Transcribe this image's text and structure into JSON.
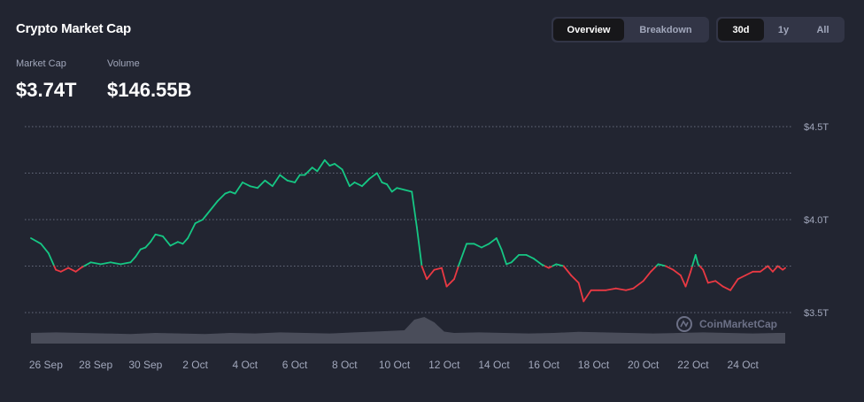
{
  "header": {
    "title": "Crypto Market Cap",
    "view_tabs": [
      {
        "label": "Overview",
        "active": true
      },
      {
        "label": "Breakdown",
        "active": false
      }
    ],
    "range_tabs": [
      {
        "label": "30d",
        "active": true
      },
      {
        "label": "1y",
        "active": false
      },
      {
        "label": "All",
        "active": false
      }
    ]
  },
  "stats": {
    "market_cap_label": "Market Cap",
    "market_cap_value": "$3.74T",
    "volume_label": "Volume",
    "volume_value": "$146.55B"
  },
  "watermark": "CoinMarketCap",
  "colors": {
    "background": "#222531",
    "up": "#16c784",
    "down": "#ea3943",
    "grid": "#a1a7bb",
    "volume": "#4a4d5a"
  },
  "chart_data": {
    "type": "line",
    "title": "",
    "xlabel": "",
    "ylabel": "",
    "y_axis_position": "right",
    "yticks": [
      {
        "value": 3.5,
        "label": "$3.5T"
      },
      {
        "value": 4.0,
        "label": "$4.0T"
      },
      {
        "value": 4.5,
        "label": "$4.5T"
      }
    ],
    "ylim": [
      3.5,
      4.5
    ],
    "xlim": [
      0,
      30.3
    ],
    "xticks": [
      {
        "value": 0.6,
        "label": "26 Sep"
      },
      {
        "value": 2.6,
        "label": "28 Sep"
      },
      {
        "value": 4.6,
        "label": "30 Sep"
      },
      {
        "value": 6.6,
        "label": "2 Oct"
      },
      {
        "value": 8.6,
        "label": "4 Oct"
      },
      {
        "value": 10.6,
        "label": "6 Oct"
      },
      {
        "value": 12.6,
        "label": "8 Oct"
      },
      {
        "value": 14.6,
        "label": "10 Oct"
      },
      {
        "value": 16.6,
        "label": "12 Oct"
      },
      {
        "value": 18.6,
        "label": "14 Oct"
      },
      {
        "value": 20.6,
        "label": "16 Oct"
      },
      {
        "value": 22.6,
        "label": "18 Oct"
      },
      {
        "value": 24.6,
        "label": "20 Oct"
      },
      {
        "value": 26.6,
        "label": "22 Oct"
      },
      {
        "value": 28.6,
        "label": "24 Oct"
      }
    ],
    "grid": true,
    "baseline": 3.75,
    "series": [
      {
        "points": [
          [
            0.0,
            3.9
          ],
          [
            0.4,
            3.87
          ],
          [
            0.7,
            3.82
          ],
          [
            1.0,
            3.73
          ],
          [
            1.2,
            3.72
          ],
          [
            1.5,
            3.74
          ],
          [
            1.8,
            3.72
          ],
          [
            2.0,
            3.74
          ],
          [
            2.4,
            3.77
          ],
          [
            2.8,
            3.76
          ],
          [
            3.2,
            3.77
          ],
          [
            3.6,
            3.76
          ],
          [
            4.0,
            3.77
          ],
          [
            4.2,
            3.8
          ],
          [
            4.4,
            3.84
          ],
          [
            4.6,
            3.85
          ],
          [
            4.8,
            3.88
          ],
          [
            5.0,
            3.92
          ],
          [
            5.3,
            3.91
          ],
          [
            5.6,
            3.86
          ],
          [
            5.9,
            3.88
          ],
          [
            6.1,
            3.87
          ],
          [
            6.3,
            3.9
          ],
          [
            6.6,
            3.98
          ],
          [
            6.9,
            4.0
          ],
          [
            7.2,
            4.05
          ],
          [
            7.5,
            4.1
          ],
          [
            7.8,
            4.14
          ],
          [
            8.0,
            4.15
          ],
          [
            8.2,
            4.14
          ],
          [
            8.5,
            4.2
          ],
          [
            8.8,
            4.18
          ],
          [
            9.1,
            4.17
          ],
          [
            9.4,
            4.21
          ],
          [
            9.7,
            4.18
          ],
          [
            10.0,
            4.24
          ],
          [
            10.3,
            4.21
          ],
          [
            10.6,
            4.2
          ],
          [
            10.8,
            4.24
          ],
          [
            11.0,
            4.24
          ],
          [
            11.3,
            4.28
          ],
          [
            11.5,
            4.26
          ],
          [
            11.8,
            4.32
          ],
          [
            12.0,
            4.29
          ],
          [
            12.2,
            4.3
          ],
          [
            12.5,
            4.27
          ],
          [
            12.8,
            4.18
          ],
          [
            13.0,
            4.2
          ],
          [
            13.3,
            4.18
          ],
          [
            13.6,
            4.22
          ],
          [
            13.9,
            4.25
          ],
          [
            14.1,
            4.2
          ],
          [
            14.3,
            4.19
          ],
          [
            14.5,
            4.15
          ],
          [
            14.7,
            4.17
          ],
          [
            15.0,
            4.16
          ],
          [
            15.3,
            4.15
          ],
          [
            15.5,
            3.96
          ],
          [
            15.7,
            3.75
          ],
          [
            15.9,
            3.68
          ],
          [
            16.2,
            3.73
          ],
          [
            16.5,
            3.74
          ],
          [
            16.7,
            3.64
          ],
          [
            17.0,
            3.68
          ],
          [
            17.2,
            3.76
          ],
          [
            17.5,
            3.87
          ],
          [
            17.8,
            3.87
          ],
          [
            18.1,
            3.85
          ],
          [
            18.4,
            3.87
          ],
          [
            18.7,
            3.9
          ],
          [
            18.9,
            3.84
          ],
          [
            19.1,
            3.76
          ],
          [
            19.3,
            3.77
          ],
          [
            19.6,
            3.81
          ],
          [
            19.9,
            3.81
          ],
          [
            20.2,
            3.79
          ],
          [
            20.5,
            3.76
          ],
          [
            20.8,
            3.74
          ],
          [
            21.1,
            3.76
          ],
          [
            21.4,
            3.75
          ],
          [
            21.7,
            3.7
          ],
          [
            22.0,
            3.66
          ],
          [
            22.2,
            3.56
          ],
          [
            22.5,
            3.62
          ],
          [
            22.8,
            3.62
          ],
          [
            23.1,
            3.62
          ],
          [
            23.5,
            3.63
          ],
          [
            23.9,
            3.62
          ],
          [
            24.2,
            3.63
          ],
          [
            24.6,
            3.67
          ],
          [
            24.9,
            3.72
          ],
          [
            25.2,
            3.76
          ],
          [
            25.5,
            3.75
          ],
          [
            25.8,
            3.73
          ],
          [
            26.1,
            3.7
          ],
          [
            26.3,
            3.64
          ],
          [
            26.5,
            3.72
          ],
          [
            26.7,
            3.81
          ],
          [
            26.8,
            3.76
          ],
          [
            27.0,
            3.73
          ],
          [
            27.2,
            3.66
          ],
          [
            27.5,
            3.67
          ],
          [
            27.8,
            3.64
          ],
          [
            28.1,
            3.62
          ],
          [
            28.4,
            3.68
          ],
          [
            28.7,
            3.7
          ],
          [
            29.0,
            3.72
          ],
          [
            29.3,
            3.72
          ],
          [
            29.6,
            3.75
          ],
          [
            29.8,
            3.72
          ],
          [
            30.0,
            3.75
          ],
          [
            30.2,
            3.73
          ],
          [
            30.3,
            3.74
          ]
        ]
      }
    ],
    "volume_series": {
      "x": [
        0,
        1,
        2,
        3,
        4,
        5,
        6,
        7,
        8,
        9,
        10,
        11,
        12,
        13,
        14,
        15,
        15.4,
        15.8,
        16.2,
        16.6,
        17,
        18,
        19,
        20,
        21,
        22,
        23,
        24,
        25,
        26,
        27,
        28,
        29,
        30,
        30.3
      ],
      "values": [
        0.4,
        0.42,
        0.4,
        0.38,
        0.36,
        0.4,
        0.38,
        0.36,
        0.4,
        0.38,
        0.42,
        0.4,
        0.38,
        0.42,
        0.46,
        0.5,
        0.9,
        1.0,
        0.8,
        0.45,
        0.4,
        0.42,
        0.4,
        0.38,
        0.4,
        0.44,
        0.42,
        0.4,
        0.38,
        0.4,
        0.42,
        0.4,
        0.38,
        0.4,
        0.4
      ]
    }
  }
}
